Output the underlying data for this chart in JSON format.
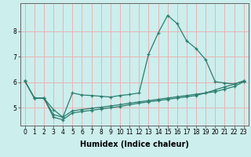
{
  "xlabel": "Humidex (Indice chaleur)",
  "background_color": "#cceeed",
  "grid_color": "#e8b4b4",
  "line_color": "#2e7d6e",
  "x_values": [
    0,
    1,
    2,
    3,
    4,
    5,
    6,
    7,
    8,
    9,
    10,
    11,
    12,
    13,
    14,
    15,
    16,
    17,
    18,
    19,
    20,
    21,
    22,
    23
  ],
  "y_main": [
    6.05,
    5.38,
    5.38,
    4.93,
    4.63,
    5.58,
    5.5,
    5.48,
    5.45,
    5.42,
    5.48,
    5.52,
    5.58,
    7.1,
    7.92,
    8.62,
    8.3,
    7.62,
    7.32,
    6.88,
    6.02,
    5.97,
    5.93,
    6.05
  ],
  "y_low": [
    6.05,
    5.38,
    5.38,
    4.73,
    4.63,
    4.88,
    4.93,
    4.98,
    5.02,
    5.07,
    5.12,
    5.18,
    5.23,
    5.28,
    5.33,
    5.38,
    5.43,
    5.48,
    5.53,
    5.58,
    5.63,
    5.73,
    5.83,
    6.02
  ],
  "y_high": [
    6.05,
    5.38,
    5.38,
    4.63,
    4.53,
    4.8,
    4.85,
    4.9,
    4.95,
    5.0,
    5.05,
    5.12,
    5.18,
    5.23,
    5.28,
    5.33,
    5.38,
    5.43,
    5.48,
    5.58,
    5.7,
    5.82,
    5.92,
    6.05
  ],
  "ylim": [
    4.3,
    9.1
  ],
  "xlim": [
    -0.5,
    23.5
  ],
  "yticks": [
    5,
    6,
    7,
    8
  ],
  "xticks": [
    0,
    1,
    2,
    3,
    4,
    5,
    6,
    7,
    8,
    9,
    10,
    11,
    12,
    13,
    14,
    15,
    16,
    17,
    18,
    19,
    20,
    21,
    22,
    23
  ],
  "marker": "+",
  "markersize": 3,
  "linewidth": 0.9,
  "xlabel_fontsize": 7,
  "tick_fontsize": 5.5
}
